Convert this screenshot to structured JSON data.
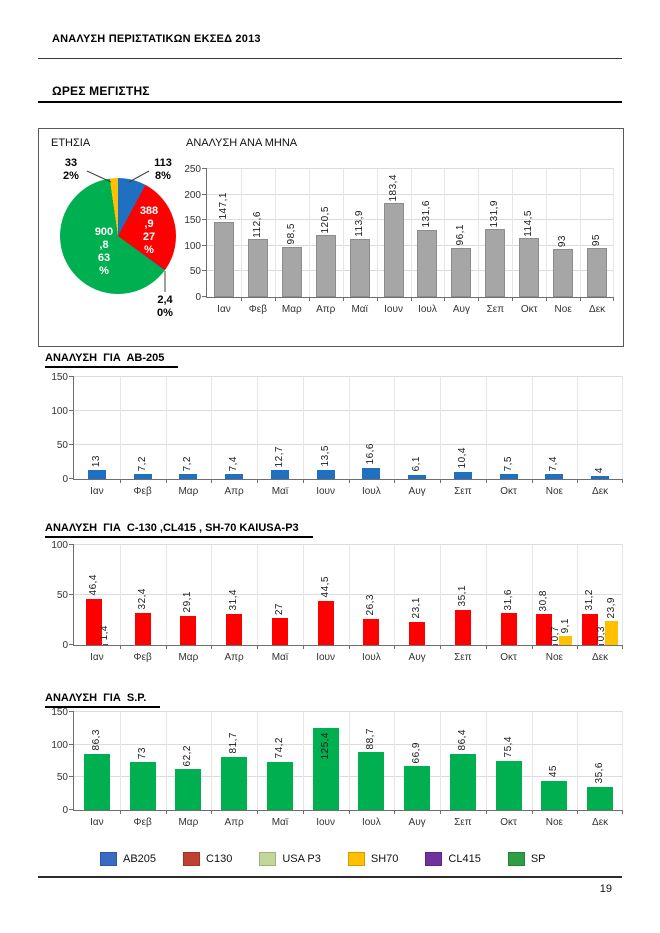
{
  "page": {
    "header_title": "ΑΝΑΛΥΣΗ ΠΕΡΙΣΤΑΤΙΚΩΝ ΕΚΣΕΔ 2013",
    "section_title": "ΩΡΕΣ ΜΕΓΙΣΤΗΣ",
    "page_number": "19"
  },
  "panel": {
    "pie_title": "ΕΤΗΣΙΑ",
    "monthly_title": "ΑΝΑΛΥΣΗ ΑΝΑ ΜΗΝΑ"
  },
  "pie_labels": {
    "sh70_out": "33\n2%",
    "ab205_out": "113\n8%",
    "cl415_out": "2,4\n0%",
    "c130_in": "388\n,9\n27\n%",
    "sp_in": "900\n,8\n63\n%"
  },
  "chart_data": [
    {
      "id": "annual",
      "type": "pie",
      "title": "ΕΤΗΣΙΑ",
      "slices": [
        {
          "name": "AB205",
          "value": 113,
          "pct_label": "8%",
          "color": "#1F70C1"
        },
        {
          "name": "C130",
          "value": 388.9,
          "pct_label": "27%",
          "color": "#FE0000"
        },
        {
          "name": "CL415",
          "value": 2.4,
          "pct_label": "0%",
          "color": "#7030A0"
        },
        {
          "name": "SP",
          "value": 900.8,
          "pct_label": "63%",
          "color": "#00B050"
        },
        {
          "name": "SH70",
          "value": 33,
          "pct_label": "2%",
          "color": "#FFC000"
        }
      ]
    },
    {
      "id": "monthly",
      "type": "bar",
      "title": "ΑΝΑΛΥΣΗ ΑΝΑ ΜΗΝΑ",
      "categories": [
        "Ιαν",
        "Φεβ",
        "Μαρ",
        "Απρ",
        "Μαϊ",
        "Ιουν",
        "Ιουλ",
        "Αυγ",
        "Σεπ",
        "Οκτ",
        "Νοε",
        "Δεκ"
      ],
      "ylim": [
        0,
        250
      ],
      "ticks": [
        0,
        50,
        100,
        150,
        200,
        250
      ],
      "series": [
        {
          "name": "ΩΡΕΣ",
          "color": "#A6A6A6",
          "values": [
            147.1,
            112.6,
            98.5,
            120.5,
            113.9,
            183.4,
            131.6,
            96.1,
            131.9,
            114.5,
            93,
            95
          ],
          "labels": [
            "147,1",
            "112,6",
            "98,5",
            "120,5",
            "113,9",
            "183,4",
            "131,6",
            "96,1",
            "131,9",
            "114,5",
            "93",
            "95"
          ]
        }
      ]
    },
    {
      "id": "ab205",
      "type": "bar",
      "title": "ΑΝΑΛΥΣΗ  ΓΙΑ  ΑΒ-205",
      "categories": [
        "Ιαν",
        "Φεβ",
        "Μαρ",
        "Απρ",
        "Μαϊ",
        "Ιουν",
        "Ιουλ",
        "Αυγ",
        "Σεπ",
        "Οκτ",
        "Νοε",
        "Δεκ"
      ],
      "ylim": [
        0,
        150
      ],
      "ticks": [
        0,
        50,
        100,
        150
      ],
      "series": [
        {
          "name": "AB205",
          "color": "#1F70C1",
          "values": [
            13,
            7.2,
            7.2,
            7.4,
            12.7,
            13.5,
            16.6,
            6.1,
            10.4,
            7.5,
            7.4,
            4
          ],
          "labels": [
            "13",
            "7,2",
            "7,2",
            "7,4",
            "12,7",
            "13,5",
            "16,6",
            "6,1",
            "10,4",
            "7,5",
            "7,4",
            "4"
          ]
        }
      ]
    },
    {
      "id": "c130",
      "type": "bar",
      "title": "ΑΝΑΛΥΣΗ  ΓΙΑ  C-130 ,CL415 , SH-70 ΚΑΙUSA-P3",
      "categories": [
        "Ιαν",
        "Φεβ",
        "Μαρ",
        "Απρ",
        "Μαϊ",
        "Ιουν",
        "Ιουλ",
        "Αυγ",
        "Σεπ",
        "Οκτ",
        "Νοε",
        "Δεκ"
      ],
      "ylim": [
        0,
        100
      ],
      "ticks": [
        0,
        50,
        100
      ],
      "series": [
        {
          "name": "C130",
          "color": "#FE0000",
          "values": [
            46.4,
            32.4,
            29.1,
            31.4,
            27,
            44.5,
            26.3,
            23.1,
            35.1,
            31.6,
            30.8,
            31.2
          ],
          "labels": [
            "46,4",
            "32,4",
            "29,1",
            "31,4",
            "27",
            "44,5",
            "26,3",
            "23,1",
            "35,1",
            "31,6",
            "30,8",
            "31,2"
          ]
        },
        {
          "name": "CL415",
          "color": "#7030A0",
          "values": [
            1.4,
            null,
            null,
            null,
            null,
            null,
            null,
            null,
            null,
            null,
            0.7,
            0.3
          ],
          "labels": [
            "1,4",
            "",
            "",
            "",
            "",
            "",
            "",
            "",
            "",
            "",
            "0,7",
            "0,3"
          ]
        },
        {
          "name": "SH70",
          "color": "#FFC000",
          "values": [
            null,
            null,
            null,
            null,
            null,
            null,
            null,
            null,
            null,
            null,
            9.1,
            23.9
          ],
          "labels": [
            "",
            "",
            "",
            "",
            "",
            "",
            "",
            "",
            "",
            "",
            "9,1",
            "23,9"
          ]
        }
      ]
    },
    {
      "id": "sp",
      "type": "bar",
      "title": "ΑΝΑΛΥΣΗ  ΓΙΑ  S.P.",
      "categories": [
        "Ιαν",
        "Φεβ",
        "Μαρ",
        "Απρ",
        "Μαϊ",
        "Ιουν",
        "Ιουλ",
        "Αυγ",
        "Σεπ",
        "Οκτ",
        "Νοε",
        "Δεκ"
      ],
      "ylim": [
        0,
        150
      ],
      "ticks": [
        0,
        50,
        100,
        150
      ],
      "series": [
        {
          "name": "SP",
          "color": "#00B050",
          "values": [
            86.3,
            73,
            62.2,
            81.7,
            74.2,
            125.4,
            88.7,
            66.9,
            86.4,
            75.4,
            45,
            35.6
          ],
          "labels": [
            "86,3",
            "73",
            "62,2",
            "81,7",
            "74,2",
            "125,4",
            "88,7",
            "66,9",
            "86,4",
            "75,4",
            "45",
            "35,6"
          ]
        }
      ]
    }
  ],
  "legend": [
    {
      "label": "AB205",
      "color": "#3A6BC4"
    },
    {
      "label": "C130",
      "color": "#C0402F"
    },
    {
      "label": "USA P3",
      "color": "#C4D79B"
    },
    {
      "label": "SH70",
      "color": "#FFC000"
    },
    {
      "label": "CL415",
      "color": "#7030A0"
    },
    {
      "label": "SP",
      "color": "#2E9E44"
    }
  ]
}
